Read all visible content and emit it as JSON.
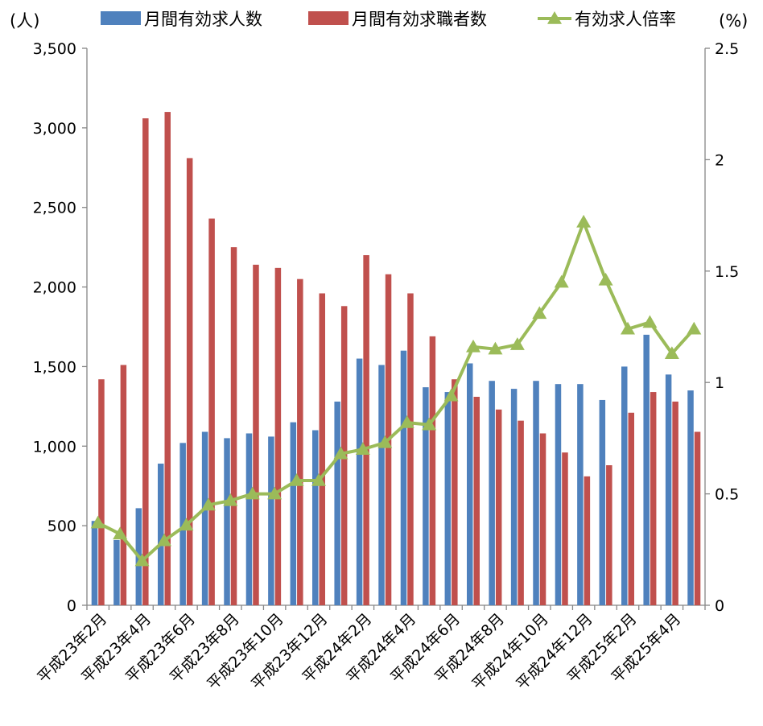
{
  "chart_data": {
    "type": "bar",
    "y_unit_left": "(人)",
    "y_unit_right": "(%)",
    "ylim_left": [
      0,
      3500
    ],
    "ylim_right": [
      0,
      2.5
    ],
    "y_ticks_left": [
      "0",
      "500",
      "1,000",
      "1,500",
      "2,000",
      "2,500",
      "3,000",
      "3,500"
    ],
    "y_ticks_right": [
      "0",
      "0.5",
      "1",
      "1.5",
      "2",
      "2.5"
    ],
    "categories": [
      "平成23年2月",
      "平成23年3月",
      "平成23年4月",
      "平成23年5月",
      "平成23年6月",
      "平成23年7月",
      "平成23年8月",
      "平成23年9月",
      "平成23年10月",
      "平成23年11月",
      "平成23年12月",
      "平成24年1月",
      "平成24年2月",
      "平成24年3月",
      "平成24年4月",
      "平成24年5月",
      "平成24年6月",
      "平成24年7月",
      "平成24年8月",
      "平成24年9月",
      "平成24年10月",
      "平成24年11月",
      "平成24年12月",
      "平成25年1月",
      "平成25年2月",
      "平成25年3月",
      "平成25年4月",
      "平成25年5月"
    ],
    "x_tick_labels": [
      "平成23年2月",
      "平成23年4月",
      "平成23年6月",
      "平成23年8月",
      "平成23年10月",
      "平成23年12月",
      "平成24年2月",
      "平成24年4月",
      "平成24年6月",
      "平成24年8月",
      "平成24年10月",
      "平成24年12月",
      "平成25年2月",
      "平成25年4月"
    ],
    "series": [
      {
        "name": "月間有効求人数",
        "type": "bar",
        "axis": "left",
        "color": "#4f81bd",
        "values": [
          530,
          410,
          610,
          890,
          1020,
          1090,
          1050,
          1080,
          1060,
          1150,
          1100,
          1280,
          1550,
          1510,
          1600,
          1370,
          1340,
          1520,
          1410,
          1360,
          1410,
          1390,
          1390,
          1290,
          1500,
          1700,
          1450,
          1350
        ]
      },
      {
        "name": "月間有効求職者数",
        "type": "bar",
        "axis": "left",
        "color": "#c0504d",
        "values": [
          1420,
          1510,
          3060,
          3100,
          2810,
          2430,
          2250,
          2140,
          2120,
          2050,
          1960,
          1880,
          2200,
          2080,
          1960,
          1690,
          1420,
          1310,
          1230,
          1160,
          1080,
          960,
          810,
          880,
          1210,
          1340,
          1280,
          1090
        ]
      },
      {
        "name": "有効求人倍率",
        "type": "line",
        "axis": "right",
        "color": "#9bbb59",
        "values": [
          0.37,
          0.32,
          0.2,
          0.29,
          0.36,
          0.45,
          0.47,
          0.5,
          0.5,
          0.56,
          0.56,
          0.68,
          0.7,
          0.73,
          0.82,
          0.81,
          0.94,
          1.16,
          1.15,
          1.17,
          1.31,
          1.45,
          1.72,
          1.46,
          1.24,
          1.27,
          1.13,
          1.24
        ]
      }
    ],
    "legend_position": "top",
    "grid": false
  }
}
